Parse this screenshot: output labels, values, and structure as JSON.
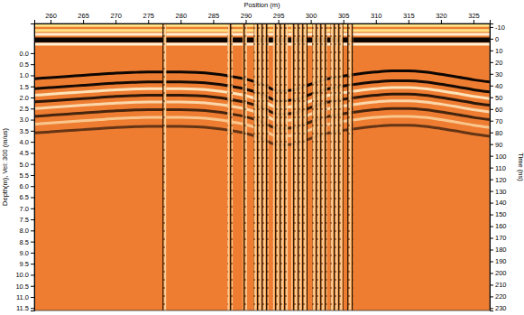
{
  "chart_data": {
    "type": "line",
    "x_label": "Position (m)",
    "y_label": "Depth(m), Vel: 300 (m/us)",
    "y2_label": "Time (ns)",
    "color": "#ee7d32",
    "xlim": [
      257.5,
      327.5
    ],
    "xticks": [
      260,
      265,
      270,
      275,
      280,
      285,
      290,
      295,
      300,
      305,
      310,
      315,
      320,
      325
    ],
    "ylim": [
      -1.34,
      11.61
    ],
    "yticks": [
      {
        "value": 0,
        "label": "0.0"
      },
      0.5,
      {
        "value": 1,
        "label": "1.0"
      },
      1.5,
      {
        "value": 2,
        "label": "2.0"
      },
      2.5,
      {
        "value": 3,
        "label": "3.0"
      },
      3.5,
      {
        "value": 4,
        "label": "4.0"
      },
      4.5,
      {
        "value": 5,
        "label": "5.0"
      },
      5.5,
      {
        "value": 6,
        "label": "6.0"
      },
      6.5,
      {
        "value": 7,
        "label": "7.0"
      },
      7.5,
      {
        "value": 8,
        "label": "8.0"
      },
      8.5,
      {
        "value": 9,
        "label": "9.0"
      },
      9.5,
      {
        "value": 10,
        "label": "10.0"
      },
      10.5,
      {
        "value": 11,
        "label": "11.0"
      },
      11.5
    ],
    "y2lim": [
      -13,
      232
    ],
    "y2ticks": [
      -10,
      0,
      10,
      20,
      30,
      40,
      50,
      60,
      70,
      80,
      90,
      100,
      110,
      120,
      130,
      140,
      150,
      160,
      170,
      180,
      190,
      200,
      210,
      220,
      230
    ],
    "x": [
      257.5,
      260,
      262.5,
      265,
      267.5,
      270,
      272.5,
      275,
      277.5,
      280,
      282.5,
      285,
      287.5,
      290,
      292.5,
      295,
      297.5,
      300,
      302.5,
      305,
      307.5,
      310,
      312.5,
      315,
      317.5,
      320,
      322.5,
      325,
      327.5
    ],
    "series": [
      {
        "color": "#ffe98c",
        "values": [
          -1.25,
          -1.25,
          -1.25,
          -1.25,
          -1.25,
          -1.25,
          -1.25,
          -1.25,
          -1.25,
          -1.25,
          -1.25,
          -1.25,
          -1.25,
          -1.25,
          -1.25,
          -1.25,
          -1.25,
          -1.25,
          -1.25,
          -1.25,
          -1.25,
          -1.25,
          -1.25,
          -1.25,
          -1.25,
          -1.25,
          -1.25,
          -1.25,
          -1.25
        ]
      },
      {
        "color": "#ffe98c",
        "values": [
          -1.02,
          -1.02,
          -1.02,
          -1.02,
          -1.02,
          -1.02,
          -1.02,
          -1.02,
          -1.02,
          -1.02,
          -1.02,
          -1.02,
          -1.02,
          -1.02,
          -1.02,
          -1.02,
          -1.02,
          -1.02,
          -1.02,
          -1.02,
          -1.02,
          -1.02,
          -1.02,
          -1.02,
          -1.02,
          -1.02,
          -1.02,
          -1.02,
          -1.02
        ]
      },
      {
        "color": "#fff6dc",
        "values": [
          -0.85,
          -0.85,
          -0.85,
          -0.85,
          -0.85,
          -0.85,
          -0.85,
          -0.85,
          -0.85,
          -0.85,
          -0.85,
          -0.85,
          -0.85,
          -0.85,
          -0.85,
          -0.85,
          -0.85,
          -0.85,
          -0.85,
          -0.85,
          -0.85,
          -0.85,
          -0.85,
          -0.85,
          -0.85,
          -0.85,
          -0.85,
          -0.85,
          -0.85
        ]
      },
      {
        "color": "#000000",
        "values": [
          -0.65,
          -0.65,
          -0.65,
          -0.65,
          -0.65,
          -0.65,
          -0.65,
          -0.65,
          -0.65,
          -0.65,
          -0.65,
          -0.65,
          -0.65,
          -0.65,
          -0.65,
          -0.65,
          -0.65,
          -0.65,
          -0.65,
          -0.65,
          -0.65,
          -0.65,
          -0.65,
          -0.65,
          -0.65,
          -0.65,
          -0.65,
          -0.65,
          -0.65
        ]
      },
      {
        "color": "#000000",
        "values": [
          -0.55,
          -0.55,
          -0.55,
          -0.55,
          -0.55,
          -0.55,
          -0.55,
          -0.55,
          -0.55,
          -0.55,
          -0.55,
          -0.55,
          -0.55,
          -0.55,
          -0.55,
          -0.55,
          -0.55,
          -0.55,
          -0.55,
          -0.55,
          -0.55,
          -0.55,
          -0.55,
          -0.55,
          -0.55,
          -0.55,
          -0.55,
          -0.55,
          -0.55
        ]
      },
      {
        "color": "#fff6dc",
        "values": [
          -0.4,
          -0.4,
          -0.4,
          -0.4,
          -0.4,
          -0.4,
          -0.4,
          -0.4,
          -0.4,
          -0.4,
          -0.4,
          -0.4,
          -0.4,
          -0.4,
          -0.4,
          -0.4,
          -0.4,
          -0.4,
          -0.4,
          -0.4,
          -0.4,
          -0.4,
          -0.4,
          -0.4,
          -0.4,
          -0.4,
          -0.4,
          -0.4,
          -0.4
        ]
      },
      {
        "color": "#000000",
        "values": [
          1.15,
          1.1,
          1.05,
          1.0,
          0.95,
          0.9,
          0.87,
          0.85,
          0.85,
          0.85,
          0.87,
          0.93,
          1.03,
          1.17,
          1.4,
          1.7,
          1.65,
          1.4,
          1.17,
          1.03,
          0.93,
          0.85,
          0.8,
          0.8,
          0.85,
          0.95,
          1.07,
          1.2,
          1.3
        ]
      },
      {
        "color": "#000000",
        "values": [
          1.6,
          1.55,
          1.5,
          1.45,
          1.4,
          1.35,
          1.32,
          1.3,
          1.3,
          1.3,
          1.32,
          1.38,
          1.48,
          1.62,
          1.85,
          2.15,
          2.1,
          1.85,
          1.62,
          1.48,
          1.38,
          1.3,
          1.25,
          1.25,
          1.3,
          1.4,
          1.52,
          1.65,
          1.75
        ]
      },
      {
        "color": "#fff3d0",
        "values": [
          1.9,
          1.85,
          1.8,
          1.75,
          1.7,
          1.65,
          1.62,
          1.6,
          1.6,
          1.6,
          1.62,
          1.68,
          1.78,
          1.92,
          2.15,
          2.45,
          2.4,
          2.15,
          1.92,
          1.78,
          1.68,
          1.6,
          1.55,
          1.55,
          1.6,
          1.7,
          1.82,
          1.95,
          2.05
        ]
      },
      {
        "color": "#000000",
        "values": [
          2.2,
          2.15,
          2.1,
          2.05,
          2.0,
          1.95,
          1.92,
          1.9,
          1.9,
          1.9,
          1.92,
          1.98,
          2.08,
          2.22,
          2.45,
          2.75,
          2.7,
          2.45,
          2.22,
          2.08,
          1.98,
          1.9,
          1.85,
          1.85,
          1.9,
          2.0,
          2.12,
          2.25,
          2.35
        ]
      },
      {
        "color": "#fff3d0",
        "values": [
          2.5,
          2.45,
          2.4,
          2.35,
          2.3,
          2.25,
          2.22,
          2.2,
          2.2,
          2.2,
          2.22,
          2.28,
          2.38,
          2.52,
          2.75,
          3.05,
          3.0,
          2.75,
          2.52,
          2.38,
          2.28,
          2.2,
          2.15,
          2.15,
          2.2,
          2.3,
          2.42,
          2.55,
          2.65
        ]
      },
      {
        "color": "#000000",
        "values": [
          2.85,
          2.8,
          2.75,
          2.7,
          2.65,
          2.6,
          2.57,
          2.55,
          2.55,
          2.55,
          2.57,
          2.63,
          2.73,
          2.87,
          3.1,
          3.4,
          3.35,
          3.1,
          2.87,
          2.73,
          2.63,
          2.55,
          2.5,
          2.5,
          2.55,
          2.65,
          2.77,
          2.9,
          3.0
        ]
      },
      {
        "color": "#fff0c0",
        "values": [
          3.2,
          3.15,
          3.1,
          3.05,
          3.0,
          2.95,
          2.92,
          2.9,
          2.9,
          2.9,
          2.92,
          2.98,
          3.08,
          3.22,
          3.45,
          3.75,
          3.7,
          3.45,
          3.22,
          3.08,
          2.98,
          2.9,
          2.85,
          2.85,
          2.9,
          3.0,
          3.12,
          3.25,
          3.35
        ]
      },
      {
        "color": "#000000",
        "values": [
          3.6,
          3.55,
          3.5,
          3.45,
          3.4,
          3.35,
          3.32,
          3.3,
          3.3,
          3.3,
          3.32,
          3.38,
          3.48,
          3.62,
          3.85,
          4.15,
          4.1,
          3.85,
          3.62,
          3.48,
          3.38,
          3.3,
          3.25,
          3.25,
          3.3,
          3.4,
          3.52,
          3.65,
          3.75
        ]
      }
    ],
    "noise_bands": [
      [
        277.2,
        277.8
      ],
      [
        287.2,
        288.0
      ],
      [
        289.5,
        290.2
      ],
      [
        291.2,
        293.5
      ],
      [
        294.2,
        296.5
      ],
      [
        297.0,
        299.5
      ],
      [
        300.2,
        302.5
      ],
      [
        303.0,
        305.0
      ],
      [
        305.6,
        306.5
      ]
    ]
  }
}
